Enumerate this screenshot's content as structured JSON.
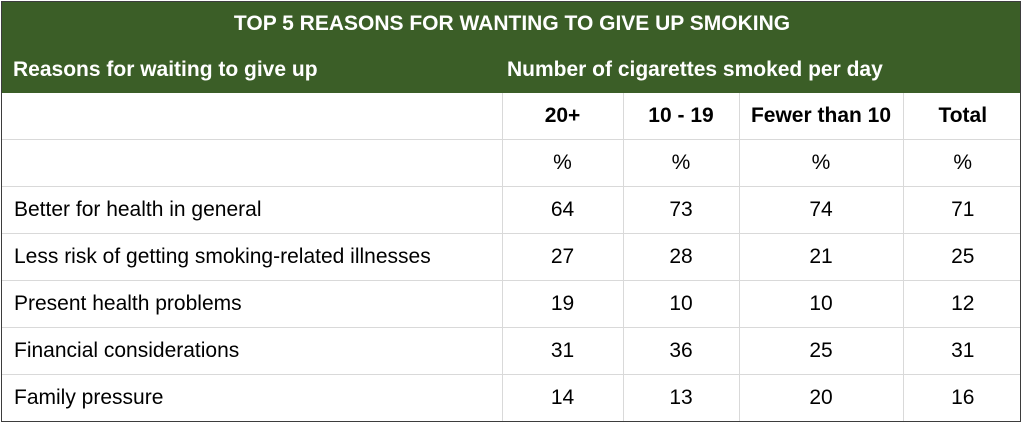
{
  "table": {
    "title": "TOP 5 REASONS FOR WANTING TO GIVE UP SMOKING",
    "reasons_header": "Reasons for waiting to give up",
    "cigarettes_header": "Number of cigarettes smoked per day",
    "columns": [
      "20+",
      "10 - 19",
      "Fewer than 10",
      "Total"
    ],
    "units": [
      "%",
      "%",
      "%",
      "%"
    ],
    "rows": [
      {
        "reason": "Better for health in general",
        "values": [
          "64",
          "73",
          "74",
          "71"
        ]
      },
      {
        "reason": "Less risk of getting smoking-related illnesses",
        "values": [
          "27",
          "28",
          "21",
          "25"
        ]
      },
      {
        "reason": "Present health problems",
        "values": [
          "19",
          "10",
          "10",
          "12"
        ]
      },
      {
        "reason": "Financial considerations",
        "values": [
          "31",
          "36",
          "25",
          "31"
        ]
      },
      {
        "reason": "Family pressure",
        "values": [
          "14",
          "13",
          "20",
          "16"
        ]
      }
    ]
  },
  "colors": {
    "header_background": "#3b5e27",
    "header_text": "#ffffff",
    "gridline": "#d9d9d9"
  }
}
